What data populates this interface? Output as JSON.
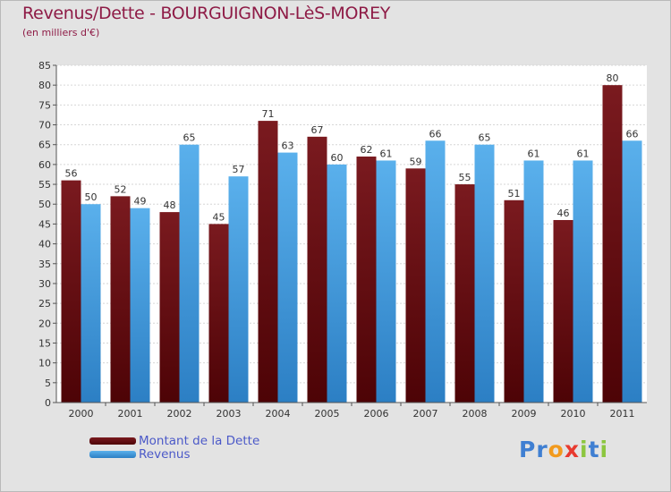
{
  "colors": {
    "debt": "#7a1a1f",
    "debt_dark": "#4d0306",
    "revenue": "#5ab0ec",
    "revenue_dark": "#2c7fc4",
    "title": "#8e1b46",
    "legend_text": "#4b59c8"
  },
  "brand": {
    "text": "Proxiti",
    "letters": [
      "P",
      "r",
      "o",
      "x",
      "i",
      "t",
      "i"
    ],
    "letter_colors": [
      "#3f7fd2",
      "#3f7fd2",
      "#f29a1d",
      "#e83a2f",
      "#8cc63f",
      "#3f7fd2",
      "#8cc63f"
    ]
  },
  "chart_data": {
    "type": "bar",
    "title": "Revenus/Dette - BOURGUIGNON-LèS-MOREY",
    "subtitle": "(en milliers d'€)",
    "xlabel": "",
    "ylabel": "",
    "ylim": [
      0,
      85
    ],
    "ytick_step": 5,
    "grid": true,
    "legend_position": "bottom-left",
    "categories": [
      "2000",
      "2001",
      "2002",
      "2003",
      "2004",
      "2005",
      "2006",
      "2007",
      "2008",
      "2009",
      "2010",
      "2011"
    ],
    "series": [
      {
        "name": "Montant de la Dette",
        "values": [
          56,
          52,
          48,
          45,
          71,
          67,
          62,
          59,
          55,
          51,
          46,
          80
        ]
      },
      {
        "name": "Revenus",
        "values": [
          50,
          49,
          65,
          57,
          63,
          60,
          61,
          66,
          65,
          61,
          61,
          66
        ]
      }
    ]
  }
}
